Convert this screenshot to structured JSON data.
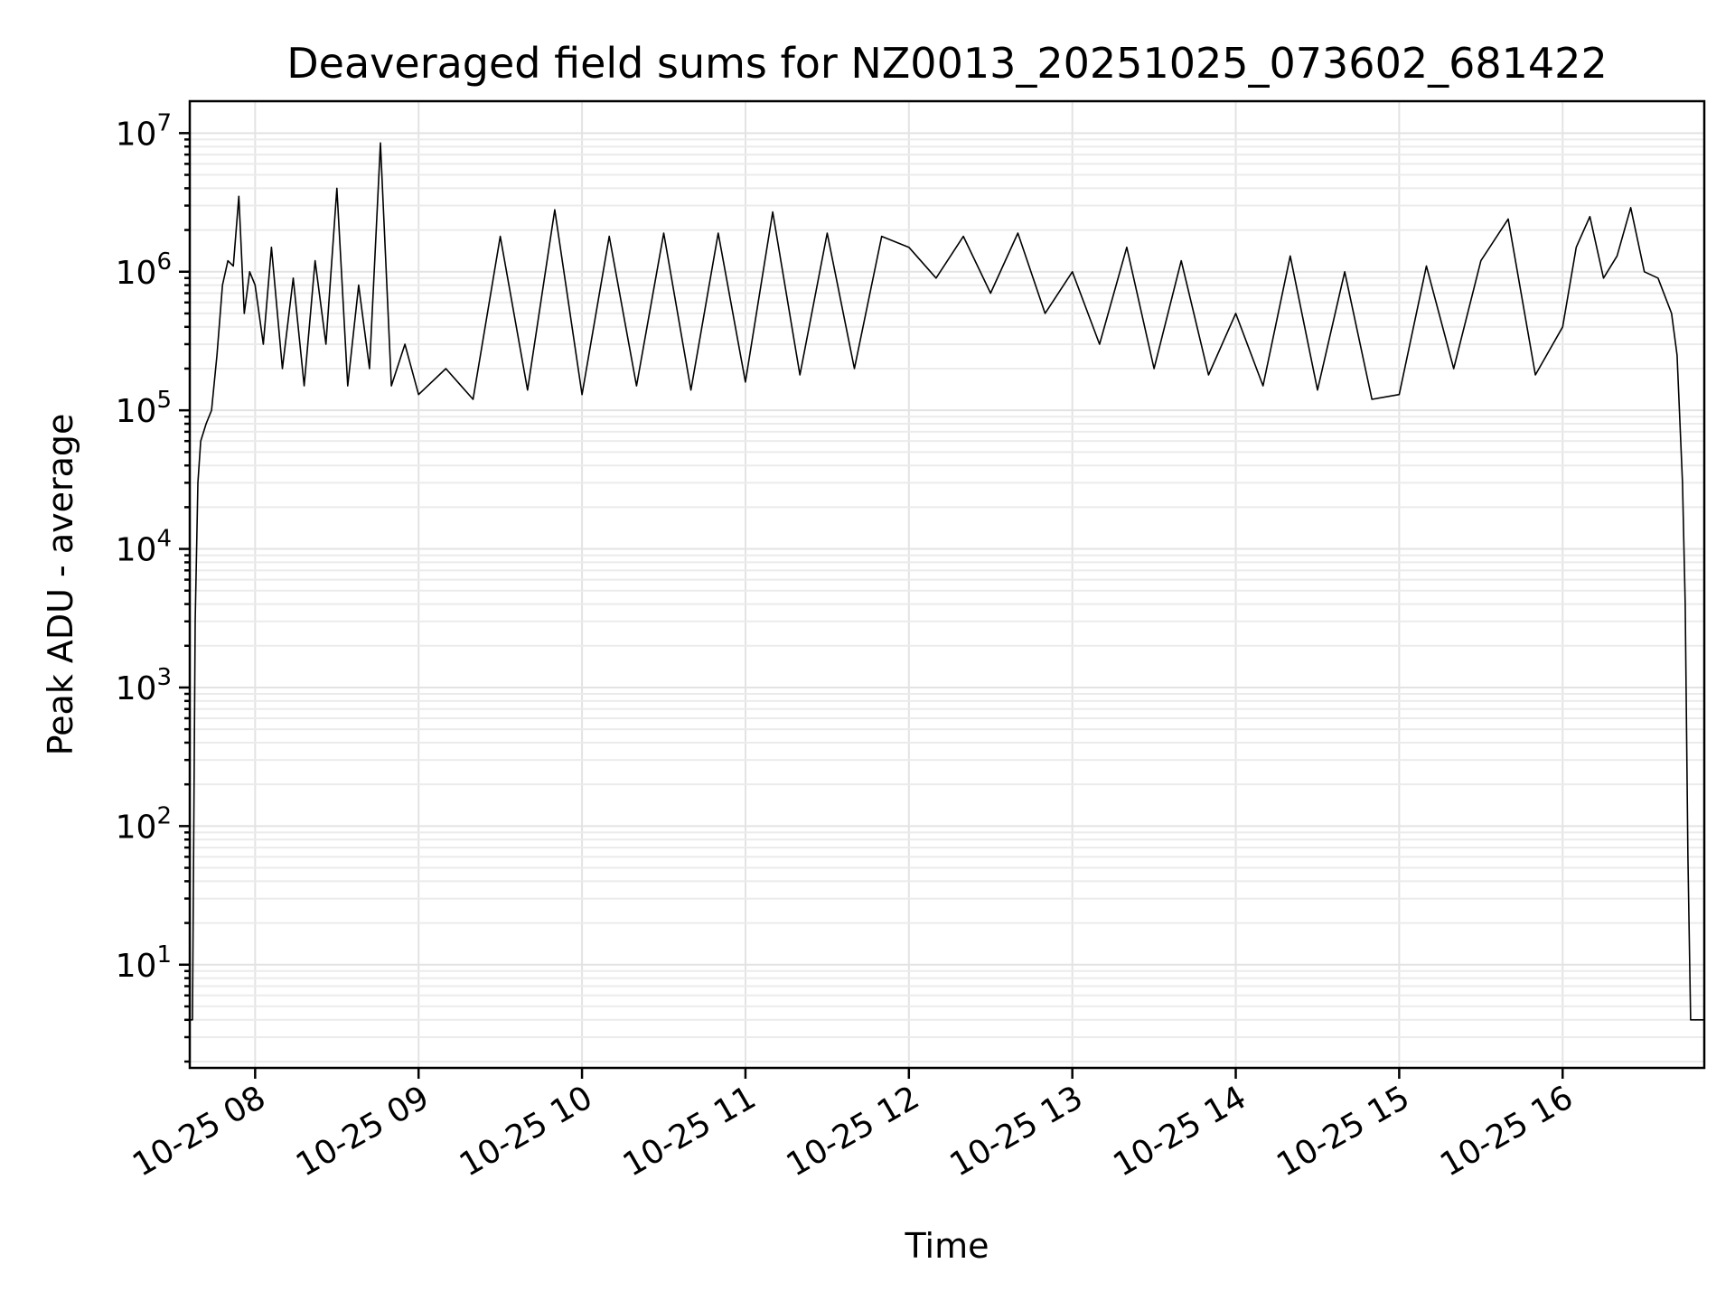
{
  "chart_data": {
    "type": "line",
    "title": "Deaveraged field sums for NZ0013_20251025_073602_681422",
    "xlabel": "Time",
    "ylabel": "Peak ADU - average",
    "y_scale": "log",
    "ylim": [
      1.8,
      17000000
    ],
    "xlim": [
      "2025-10-25 07:36",
      "2025-10-25 16:52"
    ],
    "grid": true,
    "x_tick_labels": [
      "10-25 08",
      "10-25 09",
      "10-25 10",
      "10-25 11",
      "10-25 12",
      "10-25 13",
      "10-25 14",
      "10-25 15",
      "10-25 16"
    ],
    "x_ticks": [
      "2025-10-25 08:00",
      "2025-10-25 09:00",
      "2025-10-25 10:00",
      "2025-10-25 11:00",
      "2025-10-25 12:00",
      "2025-10-25 13:00",
      "2025-10-25 14:00",
      "2025-10-25 15:00",
      "2025-10-25 16:00"
    ],
    "y_ticks": [
      10,
      100,
      1000,
      10000,
      100000,
      1000000,
      10000000
    ],
    "y_tick_bases": [
      "10",
      "10",
      "10",
      "10",
      "10",
      "10",
      "10"
    ],
    "y_tick_exponents": [
      "1",
      "2",
      "3",
      "4",
      "5",
      "6",
      "7"
    ],
    "series": [
      {
        "color": "#000000",
        "x": [
          "2025-10-25 07:36",
          "2025-10-25 07:37",
          "2025-10-25 07:38",
          "2025-10-25 07:39",
          "2025-10-25 07:40",
          "2025-10-25 07:42",
          "2025-10-25 07:44",
          "2025-10-25 07:46",
          "2025-10-25 07:48",
          "2025-10-25 07:50",
          "2025-10-25 07:52",
          "2025-10-25 07:54",
          "2025-10-25 07:56",
          "2025-10-25 07:58",
          "2025-10-25 08:00",
          "2025-10-25 08:03",
          "2025-10-25 08:06",
          "2025-10-25 08:10",
          "2025-10-25 08:14",
          "2025-10-25 08:18",
          "2025-10-25 08:22",
          "2025-10-25 08:26",
          "2025-10-25 08:30",
          "2025-10-25 08:34",
          "2025-10-25 08:38",
          "2025-10-25 08:42",
          "2025-10-25 08:46",
          "2025-10-25 08:50",
          "2025-10-25 08:55",
          "2025-10-25 09:00",
          "2025-10-25 09:10",
          "2025-10-25 09:20",
          "2025-10-25 09:30",
          "2025-10-25 09:40",
          "2025-10-25 09:50",
          "2025-10-25 10:00",
          "2025-10-25 10:10",
          "2025-10-25 10:20",
          "2025-10-25 10:30",
          "2025-10-25 10:40",
          "2025-10-25 10:50",
          "2025-10-25 11:00",
          "2025-10-25 11:10",
          "2025-10-25 11:20",
          "2025-10-25 11:30",
          "2025-10-25 11:40",
          "2025-10-25 11:50",
          "2025-10-25 12:00",
          "2025-10-25 12:10",
          "2025-10-25 12:20",
          "2025-10-25 12:30",
          "2025-10-25 12:40",
          "2025-10-25 12:50",
          "2025-10-25 13:00",
          "2025-10-25 13:10",
          "2025-10-25 13:20",
          "2025-10-25 13:30",
          "2025-10-25 13:40",
          "2025-10-25 13:50",
          "2025-10-25 14:00",
          "2025-10-25 14:10",
          "2025-10-25 14:20",
          "2025-10-25 14:30",
          "2025-10-25 14:40",
          "2025-10-25 14:50",
          "2025-10-25 15:00",
          "2025-10-25 15:10",
          "2025-10-25 15:20",
          "2025-10-25 15:30",
          "2025-10-25 15:40",
          "2025-10-25 15:50",
          "2025-10-25 16:00",
          "2025-10-25 16:05",
          "2025-10-25 16:10",
          "2025-10-25 16:15",
          "2025-10-25 16:20",
          "2025-10-25 16:25",
          "2025-10-25 16:30",
          "2025-10-25 16:35",
          "2025-10-25 16:40",
          "2025-10-25 16:42",
          "2025-10-25 16:44",
          "2025-10-25 16:45",
          "2025-10-25 16:46",
          "2025-10-25 16:47",
          "2025-10-25 16:48",
          "2025-10-25 16:50",
          "2025-10-25 16:52"
        ],
        "y": [
          4,
          4,
          3000,
          30000,
          60000,
          80000,
          100000,
          250000,
          800000,
          1200000,
          1100000,
          3500000,
          500000,
          1000000,
          800000,
          300000,
          1500000,
          200000,
          900000,
          150000,
          1200000,
          300000,
          4000000,
          150000,
          800000,
          200000,
          8500000,
          150000,
          300000,
          130000,
          200000,
          120000,
          1800000,
          140000,
          2800000,
          130000,
          1800000,
          150000,
          1900000,
          140000,
          1900000,
          160000,
          2700000,
          180000,
          1900000,
          200000,
          1800000,
          1500000,
          900000,
          1800000,
          700000,
          1900000,
          500000,
          1000000,
          300000,
          1500000,
          200000,
          1200000,
          180000,
          500000,
          150000,
          1300000,
          140000,
          1000000,
          120000,
          130000,
          1100000,
          200000,
          1200000,
          2400000,
          180000,
          400000,
          1500000,
          2500000,
          900000,
          1300000,
          2900000,
          1000000,
          900000,
          500000,
          250000,
          30000,
          4000,
          60,
          4,
          4,
          4,
          4
        ]
      }
    ]
  }
}
